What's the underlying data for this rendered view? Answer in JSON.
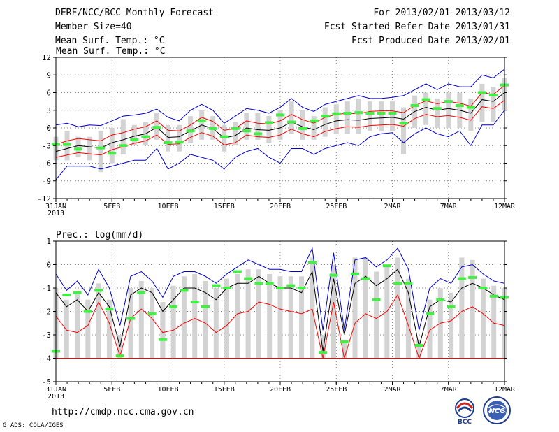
{
  "header": {
    "left": [
      "DERF/NCC/BCC Monthly Forecast",
      "Member Size=40",
      "Mean Surf. Temp.: °C"
    ],
    "right": [
      "For 2013/02/01-2013/03/12",
      "Fcst Started Refer Date 2013/01/31",
      "Fcst Produced Date 2013/02/01"
    ]
  },
  "footer": {
    "url": "http://cmdp.ncc.cma.gov.cn",
    "credit": "GrADS: COLA/IGES"
  },
  "logos": {
    "bcc": "BCC",
    "ncc": "NCC"
  },
  "colors": {
    "box": "#d3d3d3",
    "mean": "#000000",
    "inner": "#ff0000",
    "outer": "#0000cc",
    "obs": "#44ee44",
    "grid": "#888888"
  },
  "chart_data": [
    {
      "type": "line",
      "title": "Mean Surf. Temp.: °C",
      "x_ticks": [
        "31JAN\n2013",
        "5FEB",
        "10FEB",
        "15FEB",
        "20FEB",
        "25FEB",
        "2MAR",
        "7MAR",
        "12MAR"
      ],
      "x_tick_days": [
        0,
        5,
        10,
        15,
        20,
        25,
        30,
        35,
        40
      ],
      "ylim": [
        -12,
        12
      ],
      "y_ticks": [
        -12,
        -9,
        -6,
        -3,
        0,
        3,
        6,
        9,
        12
      ],
      "series": [
        {
          "name": "ensemble mean",
          "color": "#000000",
          "values": [
            -4.0,
            -3.5,
            -3.0,
            -3.2,
            -3.4,
            -2.5,
            -2.0,
            -1.4,
            -1.0,
            0.1,
            -1.6,
            -1.5,
            -0.5,
            0.5,
            -0.1,
            -1.7,
            -1.3,
            0.0,
            -0.3,
            -0.4,
            0.0,
            1.0,
            0.2,
            -0.3,
            0.6,
            1.2,
            1.4,
            1.3,
            1.6,
            1.7,
            1.8,
            1.5,
            2.8,
            3.5,
            3.0,
            3.3,
            3.0,
            2.5,
            4.8,
            4.5,
            6.0
          ]
        },
        {
          "name": "upper inner",
          "color": "#ff0000",
          "values": [
            -2.8,
            -2.2,
            -1.8,
            -2.0,
            -2.2,
            -1.2,
            -0.8,
            -0.2,
            0.2,
            1.2,
            -0.4,
            -0.5,
            0.5,
            1.8,
            1.1,
            -0.4,
            -0.1,
            1.2,
            0.8,
            0.7,
            1.2,
            2.3,
            1.4,
            0.8,
            1.8,
            2.3,
            2.5,
            2.4,
            2.8,
            2.9,
            2.9,
            2.6,
            3.8,
            4.6,
            4.1,
            4.5,
            4.2,
            3.7,
            6.0,
            5.7,
            7.2
          ]
        },
        {
          "name": "lower inner",
          "color": "#ff0000",
          "values": [
            -5.0,
            -4.6,
            -4.2,
            -4.4,
            -4.6,
            -3.7,
            -3.2,
            -2.6,
            -2.2,
            -1.2,
            -2.8,
            -2.7,
            -1.6,
            -0.8,
            -1.4,
            -2.9,
            -2.5,
            -1.2,
            -1.5,
            -1.6,
            -1.2,
            -0.2,
            -1.0,
            -1.5,
            -0.6,
            -0.1,
            0.2,
            0.1,
            0.4,
            0.5,
            0.6,
            0.3,
            1.6,
            2.3,
            1.9,
            2.1,
            1.8,
            1.3,
            3.6,
            3.3,
            4.7
          ]
        },
        {
          "name": "upper outer",
          "color": "#0000cc",
          "values": [
            0.5,
            0.8,
            0.2,
            0.5,
            0.4,
            1.2,
            2.0,
            2.2,
            2.5,
            3.2,
            1.8,
            1.2,
            3.0,
            4.0,
            3.0,
            0.8,
            2.0,
            3.3,
            3.0,
            2.5,
            3.5,
            5.0,
            3.5,
            2.8,
            4.0,
            4.5,
            5.0,
            5.5,
            5.0,
            5.0,
            5.2,
            5.5,
            6.5,
            7.5,
            6.5,
            7.5,
            7.0,
            7.0,
            9.0,
            8.5,
            10.0
          ]
        },
        {
          "name": "lower outer",
          "color": "#0000cc",
          "values": [
            -8.8,
            -6.5,
            -6.5,
            -6.5,
            -7.0,
            -6.5,
            -6.0,
            -5.5,
            -5.5,
            -3.5,
            -7.0,
            -6.0,
            -4.5,
            -5.0,
            -5.5,
            -7.0,
            -5.0,
            -4.0,
            -3.5,
            -5.0,
            -6.0,
            -3.5,
            -3.5,
            -4.5,
            -3.5,
            -3.0,
            -2.5,
            -3.0,
            -1.5,
            -1.0,
            -0.8,
            -2.5,
            -1.0,
            0.0,
            -1.0,
            -1.5,
            -0.5,
            -3.0,
            0.5,
            0.5,
            3.0
          ]
        },
        {
          "name": "observed",
          "color": "#44ee44",
          "values": [
            -2.8,
            -2.8,
            -3.6,
            null,
            -3.4,
            -4.3,
            -3.0,
            -2.0,
            -1.5,
            0.1,
            -2.5,
            -2.4,
            -0.5,
            1.2,
            -0.1,
            -1.5,
            -0.1,
            -0.5,
            -1.0,
            0.9,
            2.2,
            1.0,
            -0.1,
            1.2,
            2.0,
            2.4,
            2.5,
            2.6,
            2.5,
            2.5,
            2.5,
            0.8,
            3.8,
            4.8,
            3.3,
            4.5,
            3.8,
            3.5,
            6.0,
            5.6,
            7.3
          ]
        }
      ],
      "boxes": {
        "low": [
          -5.5,
          -5.5,
          -5.0,
          -5.5,
          -7.5,
          -6.0,
          -4.5,
          -3.0,
          -3.0,
          -2.0,
          -4.0,
          -4.0,
          -2.5,
          -2.0,
          -2.0,
          -4.0,
          -3.0,
          -2.0,
          -2.0,
          -2.5,
          -2.0,
          -1.0,
          -2.0,
          -2.0,
          -1.5,
          -1.0,
          -1.0,
          -1.0,
          -0.5,
          -0.5,
          -0.5,
          -4.5,
          0.0,
          0.5,
          0.0,
          0.0,
          0.0,
          -0.5,
          1.0,
          1.0,
          3.0
        ],
        "high": [
          -1.5,
          -0.5,
          -1.5,
          -1.5,
          -0.5,
          0.0,
          1.5,
          0.5,
          1.0,
          2.5,
          0.5,
          0.5,
          2.0,
          3.0,
          2.0,
          0.5,
          1.0,
          2.5,
          2.5,
          2.0,
          3.0,
          4.5,
          3.0,
          2.0,
          3.5,
          4.0,
          4.5,
          5.0,
          4.5,
          4.5,
          4.5,
          3.5,
          5.5,
          6.0,
          5.0,
          6.0,
          6.0,
          5.0,
          7.5,
          7.0,
          8.5
        ]
      }
    },
    {
      "type": "line",
      "title": "Prec.: log(mm/d)",
      "x_ticks": [
        "31JAN\n2013",
        "5FEB",
        "10FEB",
        "15FEB",
        "20FEB",
        "25FEB",
        "2MAR",
        "7MAR",
        "12MAR"
      ],
      "x_tick_days": [
        0,
        5,
        10,
        15,
        20,
        25,
        30,
        35,
        40
      ],
      "ylim": [
        -5,
        1
      ],
      "y_ticks": [
        -5,
        -4,
        -3,
        -2,
        -1,
        0,
        1
      ],
      "series": [
        {
          "name": "ensemble mean",
          "color": "#000000",
          "values": [
            -1.2,
            -1.8,
            -1.5,
            -2.0,
            -1.2,
            -1.8,
            -3.5,
            -1.3,
            -1.0,
            -1.2,
            -2.0,
            -1.5,
            -1.0,
            -1.0,
            -1.2,
            -1.5,
            -1.0,
            -0.8,
            -0.8,
            -0.5,
            -0.8,
            -1.0,
            -1.0,
            -1.2,
            -0.3,
            -3.7,
            -0.6,
            -3.0,
            -0.8,
            -0.5,
            -0.9,
            -0.6,
            -0.2,
            -1.2,
            -3.5,
            -1.8,
            -1.5,
            -1.6,
            -1.0,
            -0.8,
            -1.0,
            -1.3,
            -1.5
          ]
        },
        {
          "name": "median",
          "color": "#ff0000",
          "values": [
            -2.2,
            -2.8,
            -2.9,
            -2.6,
            -1.6,
            -2.5,
            -3.9,
            -2.3,
            -1.9,
            -2.3,
            -2.9,
            -2.8,
            -2.5,
            -2.3,
            -2.5,
            -2.9,
            -2.6,
            -2.1,
            -2.0,
            -1.6,
            -1.7,
            -1.9,
            -2.0,
            -2.1,
            -1.9,
            -4.0,
            -1.6,
            -4.0,
            -2.5,
            -2.1,
            -2.3,
            -2.0,
            -1.3,
            -2.6,
            -4.0,
            -2.8,
            -2.5,
            -2.4,
            -2.0,
            -1.8,
            -2.1,
            -2.5,
            -2.6
          ]
        },
        {
          "name": "min",
          "color": "#ff0000",
          "values": [
            -4.0,
            -4.0,
            -4.0,
            -4.0,
            -4.0,
            -4.0,
            -4.0,
            -4.0,
            -4.0,
            -4.0,
            -4.0,
            -4.0,
            -4.0,
            -4.0,
            -4.0,
            -4.0,
            -4.0,
            -4.0,
            -4.0,
            -4.0,
            -4.0,
            -4.0,
            -4.0,
            -4.0,
            -4.0,
            -4.0,
            -4.0,
            -4.0,
            -4.0,
            -4.0,
            -4.0,
            -4.0,
            -4.0,
            -4.0,
            -4.0,
            -4.0,
            -4.0,
            -4.0,
            -4.0,
            -4.0,
            -4.0,
            -4.0,
            -4.0
          ]
        },
        {
          "name": "max",
          "color": "#0000cc",
          "values": [
            -0.4,
            -1.1,
            -0.7,
            -1.3,
            -0.2,
            -1.0,
            -2.6,
            -0.5,
            -0.3,
            -0.7,
            -1.4,
            -0.5,
            -0.3,
            -0.3,
            -0.5,
            -0.8,
            -0.4,
            -0.1,
            0.2,
            0.0,
            -0.2,
            -0.2,
            -0.3,
            -0.3,
            0.7,
            -2.8,
            0.5,
            -2.8,
            0.2,
            0.3,
            -0.1,
            0.2,
            0.7,
            -0.2,
            -2.8,
            -1.0,
            -0.6,
            -0.8,
            -0.1,
            0.0,
            -0.4,
            -0.7,
            -0.8
          ]
        },
        {
          "name": "observed",
          "color": "#44ee44",
          "values": [
            -3.7,
            -1.3,
            -1.2,
            -2.0,
            -1.1,
            -1.9,
            -3.9,
            -2.3,
            -1.2,
            -2.1,
            -3.2,
            -1.8,
            -1.1,
            -1.6,
            -1.8,
            -0.9,
            -1.0,
            -0.3,
            -0.6,
            -0.8,
            -0.8,
            -1.0,
            -0.9,
            -1.0,
            0.1,
            -3.75,
            -0.45,
            -3.3,
            -0.4,
            -0.6,
            -1.5,
            -0.05,
            -0.8,
            -0.8,
            -3.45,
            -2.1,
            -1.5,
            -1.8,
            -0.6,
            -0.55,
            -1.0,
            -1.35,
            -1.4
          ]
        }
      ],
      "boxes": {
        "low": [
          -4.0,
          -4.0,
          -4.0,
          -4.0,
          -4.0,
          -4.0,
          -4.0,
          -4.0,
          -4.0,
          -4.0,
          -4.0,
          -4.0,
          -4.0,
          -4.0,
          -4.0,
          -4.0,
          -4.0,
          -4.0,
          -4.0,
          -4.0,
          -4.0,
          -4.0,
          -4.0,
          -4.0,
          -4.0,
          -4.0,
          -4.0,
          -4.0,
          -4.0,
          -4.0,
          -4.0,
          -4.0,
          -4.0,
          -4.0,
          -4.0,
          -4.0,
          -4.0,
          -4.0,
          -4.0,
          -4.0,
          -4.0,
          -4.0,
          -4.0
        ],
        "high": [
          -1.0,
          -1.5,
          -1.2,
          -1.5,
          -0.8,
          -1.5,
          -3.0,
          -1.0,
          -0.7,
          -1.0,
          -1.6,
          -0.9,
          -0.5,
          -0.4,
          -0.7,
          -1.0,
          -0.6,
          -0.4,
          -0.2,
          -0.2,
          -0.4,
          -0.5,
          -0.5,
          -0.5,
          0.3,
          -3.0,
          0.0,
          -3.2,
          0.3,
          0.3,
          -0.3,
          0.0,
          0.3,
          -0.6,
          -3.2,
          -1.5,
          -1.0,
          -1.2,
          0.3,
          0.2,
          -0.6,
          -0.9,
          -1.0
        ]
      }
    }
  ]
}
